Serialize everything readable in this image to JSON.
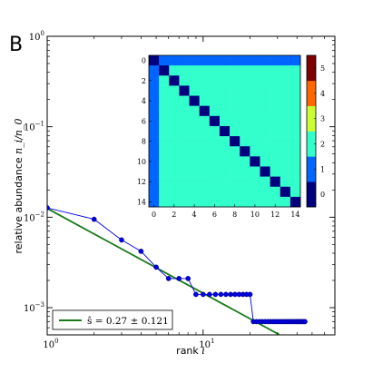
{
  "panel_label": "B",
  "chart_data": [
    {
      "type": "scatter",
      "title": "",
      "xlabel": "rank i",
      "xlabel_parts": {
        "text": "rank ",
        "var": "i"
      },
      "ylabel": "relative abundance n_i/n_0",
      "ylabel_parts": {
        "text": "relative abundance ",
        "var": "n_i/n_0"
      },
      "xscale": "log",
      "yscale": "log",
      "xlim": [
        1,
        70
      ],
      "ylim": [
        0.0005,
        1
      ],
      "x_ticks": [
        {
          "value": 1,
          "base": "10",
          "exp": "0"
        },
        {
          "value": 10,
          "base": "10",
          "exp": "1"
        }
      ],
      "y_ticks": [
        {
          "value": 1,
          "base": "10",
          "exp": "0"
        },
        {
          "value": 0.1,
          "base": "10",
          "exp": "−1"
        },
        {
          "value": 0.01,
          "base": "10",
          "exp": "−2"
        },
        {
          "value": 0.001,
          "base": "10",
          "exp": "−3"
        }
      ],
      "grid": false,
      "legend": {
        "position": "bottom-left",
        "label": "ŝ = 0.27 ± 0.121"
      },
      "series": [
        {
          "style": "line-with-markers",
          "color": "#0000e6",
          "points": [
            [
              1,
              0.0127
            ],
            [
              2,
              0.0095
            ],
            [
              3,
              0.0056
            ],
            [
              4,
              0.0042
            ],
            [
              5,
              0.0028
            ],
            [
              6,
              0.0021
            ],
            [
              7,
              0.0021
            ],
            [
              8,
              0.0021
            ],
            [
              9,
              0.0014
            ],
            [
              10,
              0.0014
            ],
            [
              11,
              0.0014
            ],
            [
              12,
              0.0014
            ],
            [
              13,
              0.0014
            ],
            [
              14,
              0.0014
            ],
            [
              15,
              0.0014
            ],
            [
              16,
              0.0014
            ],
            [
              17,
              0.0014
            ],
            [
              18,
              0.0014
            ],
            [
              19,
              0.0014
            ],
            [
              20,
              0.0014
            ],
            [
              21,
              0.0007
            ],
            [
              22,
              0.0007
            ],
            [
              23,
              0.0007
            ],
            [
              24,
              0.0007
            ],
            [
              25,
              0.0007
            ],
            [
              26,
              0.0007
            ],
            [
              27,
              0.0007
            ],
            [
              28,
              0.0007
            ],
            [
              29,
              0.0007
            ],
            [
              30,
              0.0007
            ],
            [
              31,
              0.0007
            ],
            [
              32,
              0.0007
            ],
            [
              33,
              0.0007
            ],
            [
              34,
              0.0007
            ],
            [
              35,
              0.0007
            ],
            [
              36,
              0.0007
            ],
            [
              37,
              0.0007
            ],
            [
              38,
              0.0007
            ],
            [
              39,
              0.0007
            ],
            [
              40,
              0.0007
            ],
            [
              41,
              0.0007
            ],
            [
              42,
              0.0007
            ],
            [
              43,
              0.0007
            ],
            [
              44,
              0.0007
            ],
            [
              45,
              0.0007
            ]
          ]
        },
        {
          "style": "line",
          "color": "#1a7a1a",
          "points": [
            [
              0.9,
              0.0138
            ],
            [
              31,
              0.0005
            ]
          ]
        }
      ]
    },
    {
      "type": "heatmap",
      "title": "",
      "size": 15,
      "diagonal_value": 0,
      "first_row_col_value": 1,
      "off_diagonal_value": 2,
      "x_tick_labels": [
        "0",
        "2",
        "4",
        "6",
        "8",
        "10",
        "12",
        "14"
      ],
      "y_tick_labels": [
        "0",
        "2",
        "4",
        "6",
        "8",
        "10",
        "12",
        "14"
      ],
      "colorbar": {
        "ticks": [
          "0",
          "1",
          "2",
          "3",
          "4",
          "5"
        ],
        "colors": [
          "#00007f",
          "#0066ff",
          "#33ffcc",
          "#ccff33",
          "#ff6600",
          "#7f0000"
        ]
      }
    }
  ]
}
